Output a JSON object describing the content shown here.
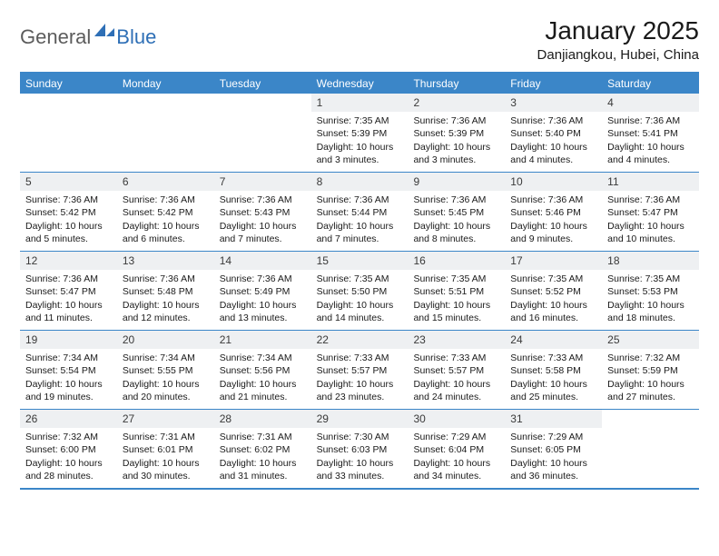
{
  "logo": {
    "part1": "General",
    "part2": "Blue"
  },
  "title": "January 2025",
  "location": "Danjiangkou, Hubei, China",
  "colors": {
    "accent": "#3b86c8",
    "logo_gray": "#5c5c5c",
    "logo_blue": "#2e6fb6",
    "daynum_bg": "#eef0f2",
    "text": "#1a1a1a"
  },
  "weekdays": [
    "Sunday",
    "Monday",
    "Tuesday",
    "Wednesday",
    "Thursday",
    "Friday",
    "Saturday"
  ],
  "weeks": [
    [
      null,
      null,
      null,
      {
        "n": "1",
        "sunrise": "7:35 AM",
        "sunset": "5:39 PM",
        "daylight": "10 hours and 3 minutes."
      },
      {
        "n": "2",
        "sunrise": "7:36 AM",
        "sunset": "5:39 PM",
        "daylight": "10 hours and 3 minutes."
      },
      {
        "n": "3",
        "sunrise": "7:36 AM",
        "sunset": "5:40 PM",
        "daylight": "10 hours and 4 minutes."
      },
      {
        "n": "4",
        "sunrise": "7:36 AM",
        "sunset": "5:41 PM",
        "daylight": "10 hours and 4 minutes."
      }
    ],
    [
      {
        "n": "5",
        "sunrise": "7:36 AM",
        "sunset": "5:42 PM",
        "daylight": "10 hours and 5 minutes."
      },
      {
        "n": "6",
        "sunrise": "7:36 AM",
        "sunset": "5:42 PM",
        "daylight": "10 hours and 6 minutes."
      },
      {
        "n": "7",
        "sunrise": "7:36 AM",
        "sunset": "5:43 PM",
        "daylight": "10 hours and 7 minutes."
      },
      {
        "n": "8",
        "sunrise": "7:36 AM",
        "sunset": "5:44 PM",
        "daylight": "10 hours and 7 minutes."
      },
      {
        "n": "9",
        "sunrise": "7:36 AM",
        "sunset": "5:45 PM",
        "daylight": "10 hours and 8 minutes."
      },
      {
        "n": "10",
        "sunrise": "7:36 AM",
        "sunset": "5:46 PM",
        "daylight": "10 hours and 9 minutes."
      },
      {
        "n": "11",
        "sunrise": "7:36 AM",
        "sunset": "5:47 PM",
        "daylight": "10 hours and 10 minutes."
      }
    ],
    [
      {
        "n": "12",
        "sunrise": "7:36 AM",
        "sunset": "5:47 PM",
        "daylight": "10 hours and 11 minutes."
      },
      {
        "n": "13",
        "sunrise": "7:36 AM",
        "sunset": "5:48 PM",
        "daylight": "10 hours and 12 minutes."
      },
      {
        "n": "14",
        "sunrise": "7:36 AM",
        "sunset": "5:49 PM",
        "daylight": "10 hours and 13 minutes."
      },
      {
        "n": "15",
        "sunrise": "7:35 AM",
        "sunset": "5:50 PM",
        "daylight": "10 hours and 14 minutes."
      },
      {
        "n": "16",
        "sunrise": "7:35 AM",
        "sunset": "5:51 PM",
        "daylight": "10 hours and 15 minutes."
      },
      {
        "n": "17",
        "sunrise": "7:35 AM",
        "sunset": "5:52 PM",
        "daylight": "10 hours and 16 minutes."
      },
      {
        "n": "18",
        "sunrise": "7:35 AM",
        "sunset": "5:53 PM",
        "daylight": "10 hours and 18 minutes."
      }
    ],
    [
      {
        "n": "19",
        "sunrise": "7:34 AM",
        "sunset": "5:54 PM",
        "daylight": "10 hours and 19 minutes."
      },
      {
        "n": "20",
        "sunrise": "7:34 AM",
        "sunset": "5:55 PM",
        "daylight": "10 hours and 20 minutes."
      },
      {
        "n": "21",
        "sunrise": "7:34 AM",
        "sunset": "5:56 PM",
        "daylight": "10 hours and 21 minutes."
      },
      {
        "n": "22",
        "sunrise": "7:33 AM",
        "sunset": "5:57 PM",
        "daylight": "10 hours and 23 minutes."
      },
      {
        "n": "23",
        "sunrise": "7:33 AM",
        "sunset": "5:57 PM",
        "daylight": "10 hours and 24 minutes."
      },
      {
        "n": "24",
        "sunrise": "7:33 AM",
        "sunset": "5:58 PM",
        "daylight": "10 hours and 25 minutes."
      },
      {
        "n": "25",
        "sunrise": "7:32 AM",
        "sunset": "5:59 PM",
        "daylight": "10 hours and 27 minutes."
      }
    ],
    [
      {
        "n": "26",
        "sunrise": "7:32 AM",
        "sunset": "6:00 PM",
        "daylight": "10 hours and 28 minutes."
      },
      {
        "n": "27",
        "sunrise": "7:31 AM",
        "sunset": "6:01 PM",
        "daylight": "10 hours and 30 minutes."
      },
      {
        "n": "28",
        "sunrise": "7:31 AM",
        "sunset": "6:02 PM",
        "daylight": "10 hours and 31 minutes."
      },
      {
        "n": "29",
        "sunrise": "7:30 AM",
        "sunset": "6:03 PM",
        "daylight": "10 hours and 33 minutes."
      },
      {
        "n": "30",
        "sunrise": "7:29 AM",
        "sunset": "6:04 PM",
        "daylight": "10 hours and 34 minutes."
      },
      {
        "n": "31",
        "sunrise": "7:29 AM",
        "sunset": "6:05 PM",
        "daylight": "10 hours and 36 minutes."
      },
      null
    ]
  ],
  "labels": {
    "sunrise": "Sunrise: ",
    "sunset": "Sunset: ",
    "daylight": "Daylight: "
  }
}
